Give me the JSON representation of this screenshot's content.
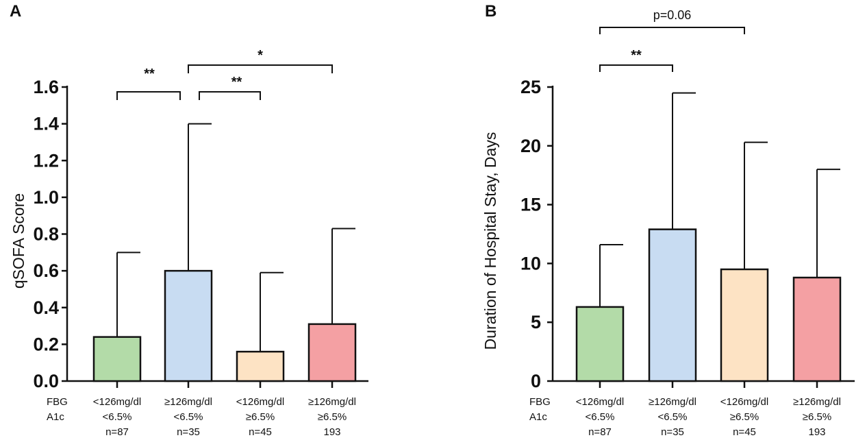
{
  "chart_data": [
    {
      "panel": "A",
      "type": "bar",
      "ylabel": "qSOFA Score",
      "ylim": [
        0,
        1.6
      ],
      "yticks": [
        "0.0",
        "0.2",
        "0.4",
        "0.6",
        "0.8",
        "1.0",
        "1.2",
        "1.4",
        "1.6"
      ],
      "row_labels": [
        "FBG",
        "A1c"
      ],
      "categories": [
        {
          "fbg": "<126mg/dl",
          "a1c": "<6.5%",
          "n": "n=87"
        },
        {
          "fbg": "≥126mg/dl",
          "a1c": "<6.5%",
          "n": "n=35"
        },
        {
          "fbg": "<126mg/dl",
          "a1c": "≥6.5%",
          "n": "n=45"
        },
        {
          "fbg": "≥126mg/dl",
          "a1c": "≥6.5%",
          "n": "193"
        }
      ],
      "values": [
        0.24,
        0.6,
        0.16,
        0.31
      ],
      "error_upper": [
        0.7,
        1.4,
        0.59,
        0.83
      ],
      "colors": [
        "#b3dba8",
        "#c8dcf2",
        "#fde3c4",
        "#f4a0a3"
      ],
      "significance": [
        {
          "from": 0,
          "to": 1,
          "label": "**",
          "level": 0
        },
        {
          "from": 1,
          "to": 2,
          "label": "**",
          "level": 0
        },
        {
          "from": 1,
          "to": 3,
          "label": "*",
          "level": 1
        }
      ]
    },
    {
      "panel": "B",
      "type": "bar",
      "ylabel": "Duration of Hospital Stay, Days",
      "ylim": [
        0,
        25
      ],
      "yticks": [
        "0",
        "5",
        "10",
        "15",
        "20",
        "25"
      ],
      "row_labels": [
        "FBG",
        "A1c"
      ],
      "categories": [
        {
          "fbg": "<126mg/dl",
          "a1c": "<6.5%",
          "n": "n=87"
        },
        {
          "fbg": "≥126mg/dl",
          "a1c": "<6.5%",
          "n": "n=35"
        },
        {
          "fbg": "<126mg/dl",
          "a1c": "≥6.5%",
          "n": "n=45"
        },
        {
          "fbg": "≥126mg/dl",
          "a1c": "≥6.5%",
          "n": "193"
        }
      ],
      "values": [
        6.3,
        12.9,
        9.5,
        8.8
      ],
      "error_upper": [
        11.6,
        24.5,
        20.3,
        18.0
      ],
      "colors": [
        "#b3dba8",
        "#c8dcf2",
        "#fde3c4",
        "#f4a0a3"
      ],
      "significance": [
        {
          "from": 0,
          "to": 1,
          "label": "**",
          "level": 0
        },
        {
          "from": 0,
          "to": 2,
          "label": "p=0.06",
          "level": 1
        }
      ]
    }
  ]
}
